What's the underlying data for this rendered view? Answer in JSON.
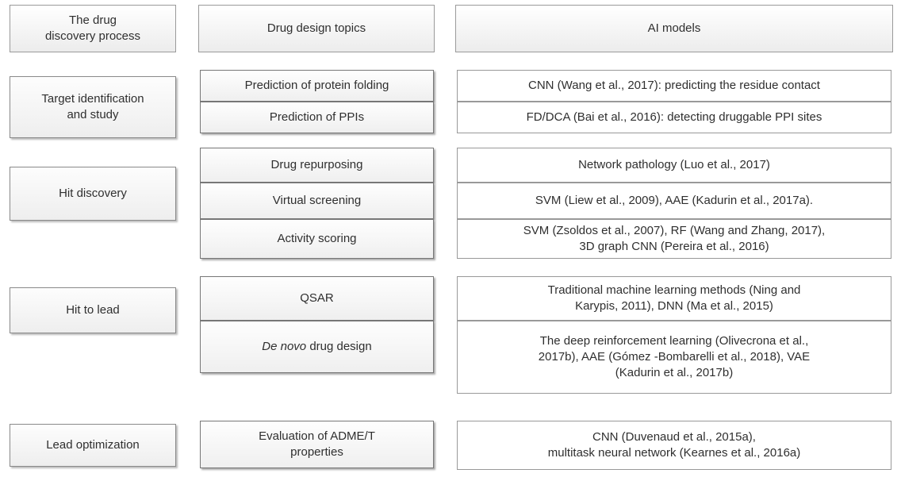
{
  "header": {
    "stage": [
      "The drug",
      "discovery process"
    ],
    "topics": "Drug design topics",
    "models": "AI models"
  },
  "stages": [
    {
      "label": [
        "Target identification",
        "and study"
      ],
      "topics": [
        "Prediction of protein folding",
        "Prediction of PPIs"
      ],
      "models": [
        "CNN  (Wang et al., 2017):  predicting the residue contact",
        "FD/DCA (Bai et al., 2016): detecting druggable PPI sites"
      ]
    },
    {
      "label": "Hit discovery",
      "topics": [
        "Drug repurposing",
        "Virtual screening",
        "Activity scoring"
      ],
      "models": [
        "Network pathology (Luo et al., 2017)",
        "SVM (Liew et al., 2009), AAE (Kadurin et al., 2017a).",
        [
          "SVM (Zsoldos et al., 2007), RF (Wang and Zhang, 2017),",
          "3D graph CNN (Pereira et al., 2016)"
        ]
      ]
    },
    {
      "label": "Hit to lead",
      "topics": [
        "QSAR",
        {
          "italic": "De novo",
          "rest": "drug design"
        }
      ],
      "models": [
        [
          "Traditional machine learning methods (Ning and",
          "Karypis, 2011),  DNN (Ma et al., 2015)"
        ],
        [
          "The deep reinforcement learning (Olivecrona et al.,",
          "2017b), AAE (Gómez -Bombarelli et al., 2018), VAE",
          "(Kadurin et al., 2017b)"
        ]
      ]
    },
    {
      "label": "Lead optimization",
      "topics": [
        [
          "Evaluation of ADME/T",
          "properties"
        ]
      ],
      "models": [
        [
          "CNN (Duvenaud et al., 2015a),",
          "multitask neural network  (Kearnes et al., 2016a)"
        ]
      ]
    }
  ]
}
